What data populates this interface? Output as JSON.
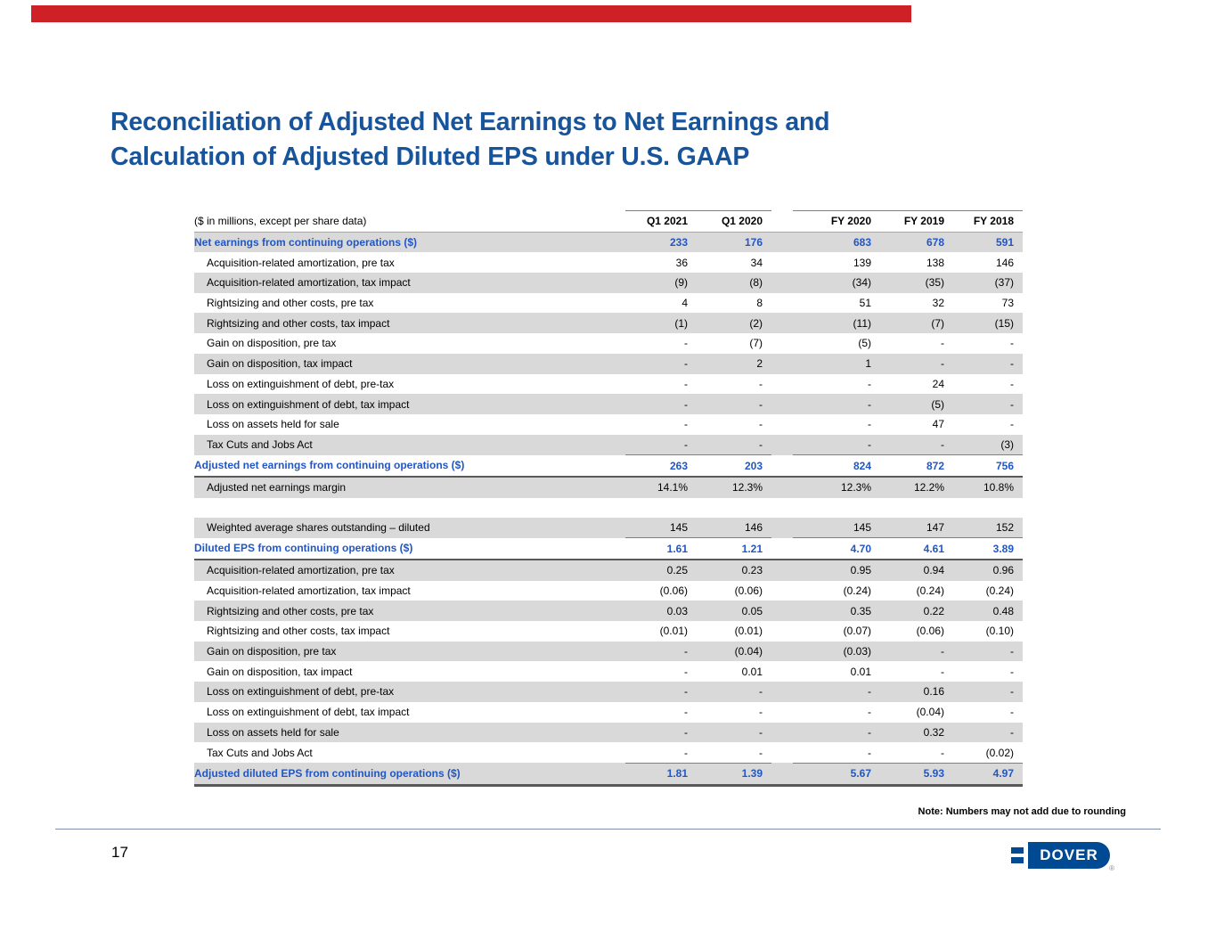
{
  "slide": {
    "title_line1": "Reconciliation of Adjusted Net Earnings to Net Earnings and",
    "title_line2": "Calculation of Adjusted Diluted EPS under U.S. GAAP",
    "page_number": "17",
    "note": "Note: Numbers may not add due to rounding"
  },
  "colors": {
    "accent_bar": "#ce2127",
    "title_blue": "#17549b",
    "table_blue": "#2156c6",
    "row_shade": "#d9d9d9",
    "logo_blue": "#004a93"
  },
  "logo": {
    "text": "DOVER",
    "registered": "®"
  },
  "table": {
    "unit_note": "($ in millions, except per share data)",
    "columns": [
      "Q1 2021",
      "Q1 2020",
      "FY 2020",
      "FY 2019",
      "FY 2018"
    ],
    "rows": [
      {
        "label": "Net earnings from continuing operations ($)",
        "values": [
          "233",
          "176",
          "683",
          "678",
          "591"
        ],
        "kind": "total",
        "shaded": true,
        "borders": ""
      },
      {
        "label": "Acquisition-related amortization, pre tax",
        "values": [
          "36",
          "34",
          "139",
          "138",
          "146"
        ],
        "kind": "sub",
        "shaded": false,
        "borders": ""
      },
      {
        "label": "Acquisition-related amortization, tax impact",
        "values": [
          "(9)",
          "(8)",
          "(34)",
          "(35)",
          "(37)"
        ],
        "kind": "sub",
        "shaded": true,
        "borders": ""
      },
      {
        "label": "Rightsizing and other costs, pre tax",
        "values": [
          "4",
          "8",
          "51",
          "32",
          "73"
        ],
        "kind": "sub",
        "shaded": false,
        "borders": ""
      },
      {
        "label": "Rightsizing and other costs, tax impact",
        "values": [
          "(1)",
          "(2)",
          "(11)",
          "(7)",
          "(15)"
        ],
        "kind": "sub",
        "shaded": true,
        "borders": ""
      },
      {
        "label": "Gain on disposition, pre tax",
        "values": [
          "-",
          "(7)",
          "(5)",
          "-",
          "-"
        ],
        "kind": "sub",
        "shaded": false,
        "borders": ""
      },
      {
        "label": "Gain on disposition, tax impact",
        "values": [
          "-",
          "2",
          "1",
          "-",
          "-"
        ],
        "kind": "sub",
        "shaded": true,
        "borders": ""
      },
      {
        "label": "Loss on extinguishment of debt, pre-tax",
        "values": [
          "-",
          "-",
          "-",
          "24",
          "-"
        ],
        "kind": "sub",
        "shaded": false,
        "borders": ""
      },
      {
        "label": "Loss on extinguishment of debt, tax impact",
        "values": [
          "-",
          "-",
          "-",
          "(5)",
          "-"
        ],
        "kind": "sub",
        "shaded": true,
        "borders": ""
      },
      {
        "label": "Loss on assets held for sale",
        "values": [
          "-",
          "-",
          "-",
          "47",
          "-"
        ],
        "kind": "sub",
        "shaded": false,
        "borders": ""
      },
      {
        "label": "Tax Cuts and Jobs Act",
        "values": [
          "-",
          "-",
          "-",
          "-",
          "(3)"
        ],
        "kind": "sub",
        "shaded": true,
        "borders": ""
      },
      {
        "label": "Adjusted net earnings from continuing operations ($)",
        "values": [
          "263",
          "203",
          "824",
          "872",
          "756"
        ],
        "kind": "total",
        "shaded": false,
        "borders": "overline underline-full"
      },
      {
        "label": "Adjusted net earnings margin",
        "values": [
          "14.1%",
          "12.3%",
          "12.3%",
          "12.2%",
          "10.8%"
        ],
        "kind": "sub",
        "shaded": true,
        "borders": ""
      },
      {
        "label": "",
        "values": [
          "",
          "",
          "",
          "",
          ""
        ],
        "kind": "spacer",
        "shaded": false,
        "borders": ""
      },
      {
        "label": "Weighted average shares outstanding – diluted",
        "values": [
          "145",
          "146",
          "145",
          "147",
          "152"
        ],
        "kind": "sub",
        "shaded": true,
        "borders": ""
      },
      {
        "label": "Diluted EPS from continuing operations ($)",
        "values": [
          "1.61",
          "1.21",
          "4.70",
          "4.61",
          "3.89"
        ],
        "kind": "total",
        "shaded": false,
        "borders": "overline underline-full"
      },
      {
        "label": "Acquisition-related amortization, pre tax",
        "values": [
          "0.25",
          "0.23",
          "0.95",
          "0.94",
          "0.96"
        ],
        "kind": "sub",
        "shaded": true,
        "borders": ""
      },
      {
        "label": "Acquisition-related amortization, tax impact",
        "values": [
          "(0.06)",
          "(0.06)",
          "(0.24)",
          "(0.24)",
          "(0.24)"
        ],
        "kind": "sub",
        "shaded": false,
        "borders": ""
      },
      {
        "label": "Rightsizing and other costs, pre tax",
        "values": [
          "0.03",
          "0.05",
          "0.35",
          "0.22",
          "0.48"
        ],
        "kind": "sub",
        "shaded": true,
        "borders": ""
      },
      {
        "label": "Rightsizing and other costs, tax impact",
        "values": [
          "(0.01)",
          "(0.01)",
          "(0.07)",
          "(0.06)",
          "(0.10)"
        ],
        "kind": "sub",
        "shaded": false,
        "borders": ""
      },
      {
        "label": "Gain on disposition, pre tax",
        "values": [
          "-",
          "(0.04)",
          "(0.03)",
          "-",
          "-"
        ],
        "kind": "sub",
        "shaded": true,
        "borders": ""
      },
      {
        "label": "Gain on disposition, tax impact",
        "values": [
          "-",
          "0.01",
          "0.01",
          "-",
          "-"
        ],
        "kind": "sub",
        "shaded": false,
        "borders": ""
      },
      {
        "label": "Loss on extinguishment of debt, pre-tax",
        "values": [
          "-",
          "-",
          "-",
          "0.16",
          "-"
        ],
        "kind": "sub",
        "shaded": true,
        "borders": ""
      },
      {
        "label": "Loss on extinguishment of debt, tax impact",
        "values": [
          "-",
          "-",
          "-",
          "(0.04)",
          "-"
        ],
        "kind": "sub",
        "shaded": false,
        "borders": ""
      },
      {
        "label": "Loss on assets held for sale",
        "values": [
          "-",
          "-",
          "-",
          "0.32",
          "-"
        ],
        "kind": "sub",
        "shaded": true,
        "borders": ""
      },
      {
        "label": "Tax Cuts and Jobs Act",
        "values": [
          "-",
          "-",
          "-",
          "-",
          "(0.02)"
        ],
        "kind": "sub",
        "shaded": false,
        "borders": ""
      },
      {
        "label": "Adjusted diluted EPS from continuing operations ($)",
        "values": [
          "1.81",
          "1.39",
          "5.67",
          "5.93",
          "4.97"
        ],
        "kind": "total",
        "shaded": true,
        "borders": "overline underline-thick"
      }
    ]
  }
}
